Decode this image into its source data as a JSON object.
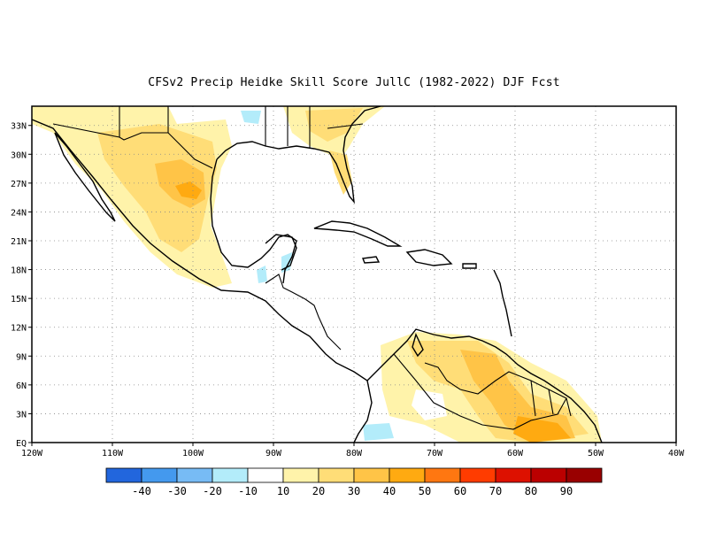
{
  "title": "CFSv2 Precip Heidke Skill Score JullC (1982-2022) DJF Fcst",
  "map": {
    "lon_ticks": [
      "120W",
      "110W",
      "100W",
      "90W",
      "80W",
      "70W",
      "60W",
      "50W",
      "40W"
    ],
    "lat_ticks": [
      "EQ",
      "3N",
      "6N",
      "9N",
      "12N",
      "15N",
      "18N",
      "21N",
      "24N",
      "27N",
      "30N",
      "33N"
    ],
    "lon_range": [
      -120,
      -40
    ],
    "lat_range": [
      0,
      35
    ],
    "grid": "dotted"
  },
  "colorbar": {
    "colors": [
      "#2266dd",
      "#4499ee",
      "#77bbf5",
      "#b3ecfa",
      "#ffffff",
      "#fff3aa",
      "#ffdd77",
      "#ffc447",
      "#ffaa11",
      "#ff7711",
      "#ff3c00",
      "#dd1100",
      "#bb0000",
      "#990000"
    ],
    "labels": [
      "-40",
      "-30",
      "-20",
      "-10",
      "10",
      "20",
      "30",
      "40",
      "50",
      "60",
      "70",
      "80",
      "90"
    ]
  },
  "skill_regions": [
    {
      "level": 20,
      "color": "#fff3aa"
    },
    {
      "level": 30,
      "color": "#ffdd77"
    },
    {
      "level": 40,
      "color": "#ffc447"
    },
    {
      "level": 50,
      "color": "#ffaa11"
    },
    {
      "level": -10,
      "color": "#b3ecfa"
    }
  ]
}
